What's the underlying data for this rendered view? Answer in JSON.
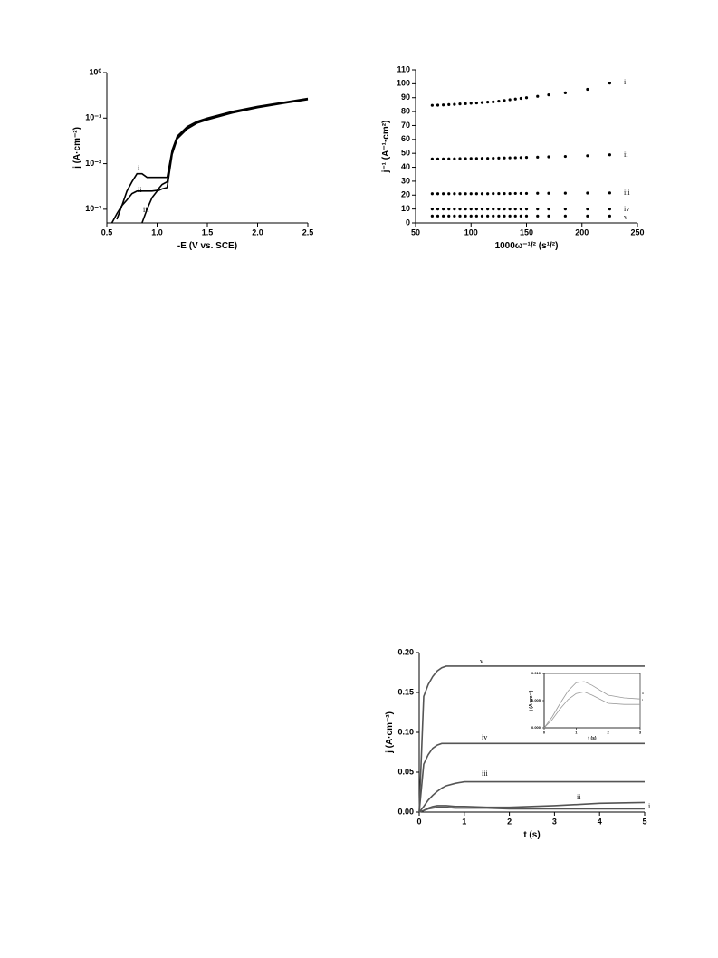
{
  "chart_data": [
    {
      "type": "line",
      "ylog": true,
      "xlabel": "-E (V vs. SCE)",
      "ylabel": "j (A·cm⁻²)",
      "xlim": [
        0.5,
        2.5
      ],
      "xticks": [
        0.5,
        {
          "value": 1,
          "label": "1.0"
        },
        1.5,
        {
          "value": 2,
          "label": "2.0"
        },
        2.5
      ],
      "ylim": [
        0.0005,
        1
      ],
      "yticks": [
        {
          "value": 1,
          "label": "10⁰"
        },
        {
          "value": 0.1,
          "label": "10⁻¹"
        },
        {
          "value": 0.01,
          "label": "10⁻²"
        },
        {
          "value": 0.001,
          "label": "10⁻³"
        }
      ],
      "x": [
        0.55,
        0.6,
        0.65,
        0.7,
        0.75,
        0.8,
        0.85,
        0.9,
        0.95,
        1.0,
        1.05,
        1.1,
        1.15,
        1.2,
        1.3,
        1.4,
        1.5,
        1.75,
        2.0,
        2.25,
        2.5
      ],
      "series": [
        {
          "name": "i",
          "color": "#000000",
          "values": [
            null,
            0.0006,
            0.0012,
            0.0025,
            0.004,
            0.006,
            0.006,
            0.005,
            0.005,
            0.005,
            0.005,
            0.005,
            0.02,
            0.04,
            0.065,
            0.085,
            0.1,
            0.14,
            0.18,
            0.22,
            0.27
          ]
        },
        {
          "name": "ii",
          "color": "#000000",
          "values": [
            0.0005,
            0.0008,
            0.0012,
            0.0016,
            0.0022,
            0.0025,
            0.0025,
            0.0025,
            0.0025,
            0.0026,
            0.0035,
            0.004,
            0.018,
            0.037,
            0.06,
            0.08,
            0.095,
            0.135,
            0.175,
            0.215,
            0.26
          ]
        },
        {
          "name": "iii",
          "color": "#000000",
          "values": [
            null,
            null,
            null,
            null,
            null,
            null,
            0.0005,
            0.001,
            0.0018,
            0.0025,
            0.0028,
            0.003,
            0.016,
            0.035,
            0.058,
            0.078,
            0.092,
            0.13,
            0.17,
            0.21,
            0.255
          ]
        }
      ]
    },
    {
      "type": "scatter",
      "xlabel": "1000ω⁻¹/² (s¹/²)",
      "ylabel": "j⁻¹ (A⁻¹·cm²)",
      "xlim": [
        50,
        250
      ],
      "xticks": [
        50,
        100,
        150,
        200,
        250
      ],
      "ylim": [
        0,
        110
      ],
      "yticks": [
        0,
        10,
        20,
        30,
        40,
        50,
        60,
        70,
        80,
        90,
        100,
        110
      ],
      "x": [
        65,
        70,
        75,
        80,
        85,
        90,
        95,
        100,
        105,
        110,
        115,
        120,
        125,
        130,
        135,
        140,
        145,
        150,
        160,
        170,
        185,
        205,
        225
      ],
      "series": [
        {
          "name": "i",
          "color": "#000000",
          "values": [
            84.5,
            84.6,
            84.8,
            85,
            85.2,
            85.5,
            85.7,
            86,
            86.2,
            86.5,
            86.8,
            87,
            87.5,
            88,
            88.5,
            89,
            89.5,
            90,
            91,
            92,
            93.5,
            96,
            100.5
          ]
        },
        {
          "name": "ii",
          "color": "#000000",
          "values": [
            46,
            46,
            46,
            46.1,
            46.1,
            46.2,
            46.2,
            46.3,
            46.3,
            46.4,
            46.4,
            46.5,
            46.6,
            46.7,
            46.8,
            46.9,
            47,
            47.1,
            47.3,
            47.5,
            47.8,
            48.3,
            49
          ]
        },
        {
          "name": "iii",
          "color": "#000000",
          "values": [
            21,
            21,
            21,
            21,
            21,
            21,
            21,
            21,
            21,
            21,
            21,
            21.1,
            21.1,
            21.1,
            21.1,
            21.2,
            21.2,
            21.2,
            21.3,
            21.3,
            21.4,
            21.5,
            21.6
          ]
        },
        {
          "name": "iv",
          "color": "#000000",
          "values": [
            10,
            10,
            10,
            10,
            10,
            10,
            10,
            10,
            10,
            10,
            10,
            10,
            10,
            10,
            10,
            10,
            10,
            10,
            10,
            10,
            10,
            10,
            10
          ]
        },
        {
          "name": "v",
          "color": "#000000",
          "values": [
            5,
            5,
            5,
            5,
            5,
            5,
            5,
            5,
            5,
            5,
            5,
            5,
            5,
            5,
            5,
            5,
            5,
            5,
            5,
            5,
            5,
            5,
            5
          ]
        }
      ]
    },
    {
      "type": "line",
      "xlabel": "t (s)",
      "ylabel": "j (A·cm⁻²)",
      "xlim": [
        0,
        5
      ],
      "xticks": [
        0,
        1,
        2,
        3,
        4,
        5
      ],
      "ylim": [
        0,
        0.2
      ],
      "yticks": [
        {
          "value": 0,
          "label": "0.00"
        },
        0.05,
        {
          "value": 0.1,
          "label": "0.10"
        },
        0.15,
        {
          "value": 0.2,
          "label": "0.20"
        }
      ],
      "x": [
        0,
        0.1,
        0.2,
        0.3,
        0.4,
        0.5,
        0.6,
        0.8,
        1,
        1.5,
        2,
        3,
        4,
        5
      ],
      "series": [
        {
          "name": "v",
          "color": "#555555",
          "values": [
            0,
            0.145,
            0.16,
            0.17,
            0.177,
            0.181,
            0.183,
            0.183,
            0.183,
            0.183,
            0.183,
            0.183,
            0.183,
            0.183
          ]
        },
        {
          "name": "iv",
          "color": "#555555",
          "values": [
            0,
            0.06,
            0.072,
            0.08,
            0.084,
            0.086,
            0.086,
            0.086,
            0.086,
            0.086,
            0.086,
            0.086,
            0.086,
            0.086
          ]
        },
        {
          "name": "iii",
          "color": "#555555",
          "values": [
            0,
            0.007,
            0.015,
            0.021,
            0.026,
            0.03,
            0.033,
            0.036,
            0.038,
            0.038,
            0.038,
            0.038,
            0.038,
            0.038
          ]
        },
        {
          "name": "ii",
          "color": "#555555",
          "values": [
            0,
            0.002,
            0.005,
            0.007,
            0.008,
            0.008,
            0.008,
            0.007,
            0.007,
            0.006,
            0.006,
            0.008,
            0.011,
            0.012
          ]
        },
        {
          "name": "i",
          "color": "#555555",
          "values": [
            0,
            0.002,
            0.004,
            0.005,
            0.006,
            0.006,
            0.006,
            0.005,
            0.005,
            0.005,
            0.004,
            0.004,
            0.004,
            0.004
          ]
        }
      ]
    },
    {
      "type": "line",
      "xlabel": "t (s)",
      "ylabel": "j (A·cm⁻²)",
      "xlim": [
        0,
        3
      ],
      "xticks": [
        0,
        1,
        2,
        3
      ],
      "ylim": [
        0,
        0.01
      ],
      "yticks": [
        {
          "value": 0,
          "label": "0.000"
        },
        0.005,
        {
          "value": 0.01,
          "label": "0.010"
        }
      ],
      "x": [
        0,
        0.25,
        0.5,
        0.75,
        1,
        1.25,
        1.5,
        2,
        2.5,
        3
      ],
      "series": [
        {
          "name": "ii",
          "color": "#999999",
          "values": [
            0,
            0.002,
            0.0045,
            0.0068,
            0.0083,
            0.0085,
            0.0078,
            0.006,
            0.0055,
            0.0053
          ]
        },
        {
          "name": "i",
          "color": "#999999",
          "values": [
            0,
            0.0015,
            0.0035,
            0.0052,
            0.0063,
            0.0066,
            0.006,
            0.0045,
            0.0043,
            0.0043
          ]
        }
      ]
    }
  ]
}
